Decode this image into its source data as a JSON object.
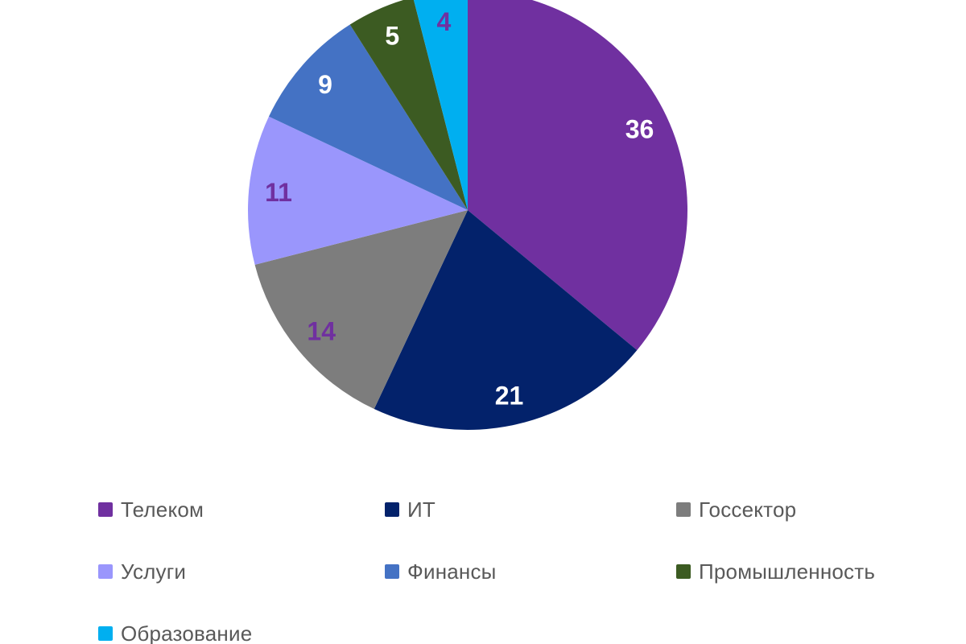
{
  "page": {
    "background_color": "#FFFFFF"
  },
  "chart_data": {
    "type": "pie",
    "title": "",
    "direction": "clockwise",
    "start_angle_deg": 0,
    "total": 100,
    "data_labels": "values",
    "legend_position": "bottom",
    "slices": [
      {
        "slug": "telecom",
        "label": "Телеком",
        "value": 36,
        "color": "#7030A0",
        "label_color": "#FFFFFF"
      },
      {
        "slug": "it",
        "label": "ИТ",
        "value": 21,
        "color": "#03226B",
        "label_color": "#FFFFFF"
      },
      {
        "slug": "government",
        "label": "Госсектор",
        "value": 14,
        "color": "#7D7D7D",
        "label_color": "#7030A0"
      },
      {
        "slug": "services",
        "label": "Услуги",
        "value": 11,
        "color": "#9A96FC",
        "label_color": "#7030A0"
      },
      {
        "slug": "finance",
        "label": "Финансы",
        "value": 9,
        "color": "#4472C4",
        "label_color": "#FFFFFF"
      },
      {
        "slug": "industry",
        "label": "Промышленность",
        "value": 5,
        "color": "#3C5B22",
        "label_color": "#FFFFFF"
      },
      {
        "slug": "education",
        "label": "Образование",
        "value": 4,
        "color": "#00AFF0",
        "label_color": "#7030A0"
      }
    ]
  },
  "legend": {
    "text_color": "#595959"
  }
}
